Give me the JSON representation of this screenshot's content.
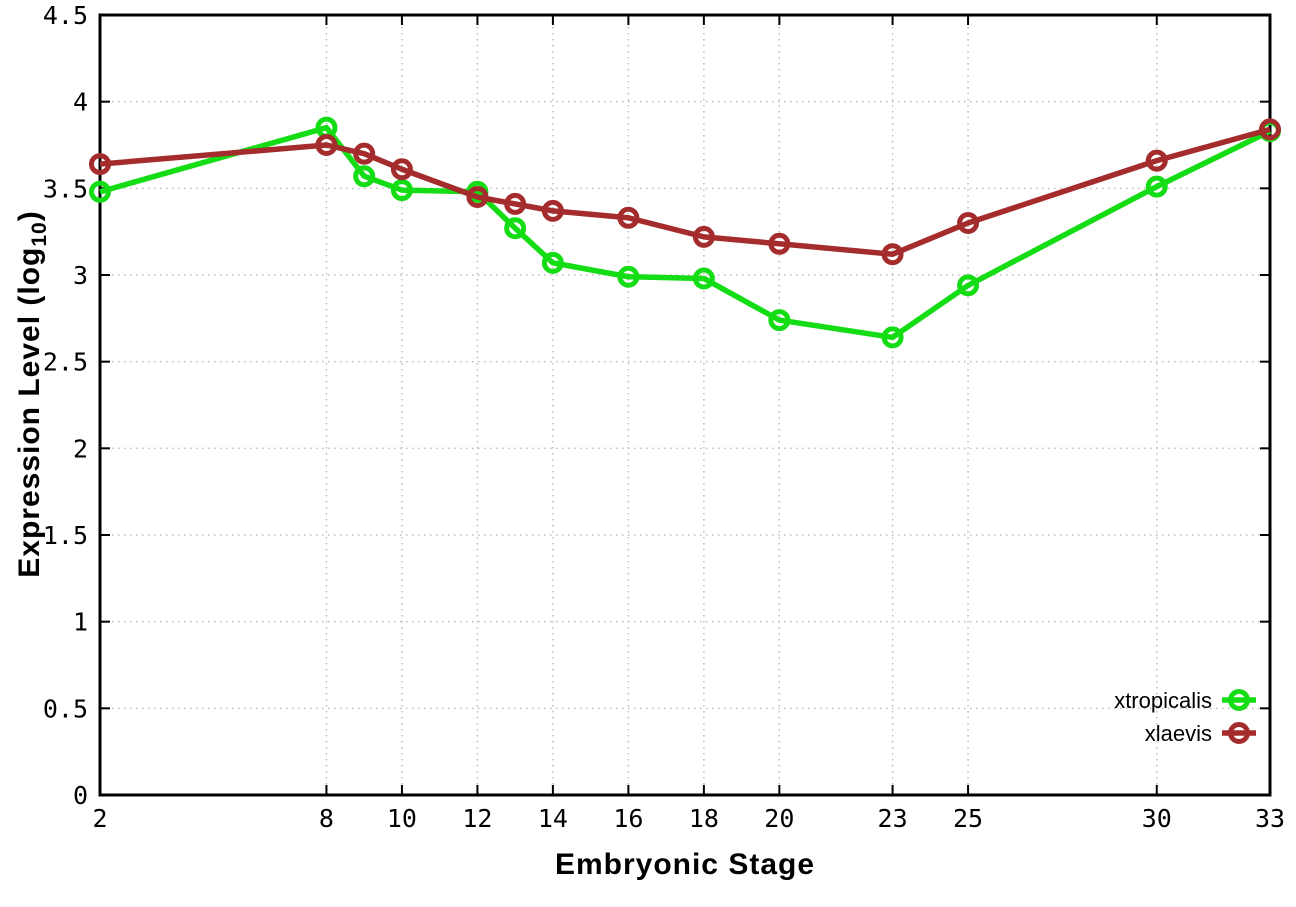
{
  "figure": {
    "background_color": "#ffffff",
    "axis_color": "#000000",
    "grid_color": "#bdbdbd"
  },
  "chart_data": {
    "type": "line",
    "title": "",
    "xlabel": "Embryonic Stage",
    "ylabel": "Expression Level (log10)",
    "ylabel_parts": {
      "prefix": "Expression Level (log",
      "subscript": "10",
      "suffix": ")"
    },
    "xlim": [
      2,
      33
    ],
    "ylim": [
      0,
      4.5
    ],
    "x_ticks": [
      2,
      8,
      10,
      12,
      14,
      16,
      18,
      20,
      23,
      25,
      30,
      33
    ],
    "y_ticks": [
      0,
      0.5,
      1,
      1.5,
      2,
      2.5,
      3,
      3.5,
      4,
      4.5
    ],
    "grid": true,
    "legend_position": "inside-right-lower",
    "x": [
      2,
      8,
      9,
      10,
      12,
      13,
      14,
      16,
      18,
      20,
      23,
      25,
      30,
      33
    ],
    "series": [
      {
        "name": "xtropicalis",
        "color": "#15dd15",
        "marker": "open-circle",
        "values": [
          3.48,
          3.85,
          3.57,
          3.49,
          3.48,
          3.27,
          3.07,
          2.99,
          2.98,
          2.74,
          2.64,
          2.94,
          3.51,
          3.83
        ]
      },
      {
        "name": "xlaevis",
        "color": "#a42c2c",
        "marker": "open-circle",
        "values": [
          3.64,
          3.75,
          3.7,
          3.61,
          3.45,
          3.41,
          3.37,
          3.33,
          3.22,
          3.18,
          3.12,
          3.3,
          3.66,
          3.84
        ]
      }
    ]
  }
}
